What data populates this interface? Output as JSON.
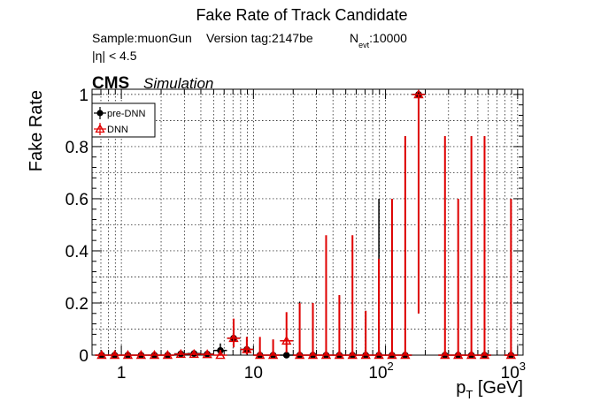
{
  "title": "Fake Rate of Track Candidate",
  "info": {
    "sample": "Sample:muonGun",
    "version": "Version tag:2147be",
    "nevt_label": "N",
    "nevt_sub": "evt",
    "nevt_value": ":10000",
    "eta_cut": "|η| < 4.5"
  },
  "cms_label": "CMS",
  "simulation_label": "Simulation",
  "chart_data": {
    "type": "scatter",
    "title": "Fake Rate of Track Candidate",
    "xlabel_main": "p",
    "xlabel_sub": "T",
    "xlabel_unit": " [GeV]",
    "ylabel": "Fake Rate",
    "xscale": "log",
    "xlim": [
      0.6,
      1100
    ],
    "ylim": [
      0,
      1.02
    ],
    "grid": true,
    "legend_placement": "top-left",
    "x_major_ticks": [
      {
        "value": 1,
        "base": "1",
        "exp": ""
      },
      {
        "value": 10,
        "base": "10",
        "exp": ""
      },
      {
        "value": 100,
        "base": "10",
        "exp": "2"
      },
      {
        "value": 1000,
        "base": "10",
        "exp": "3"
      }
    ],
    "y_ticks": [
      {
        "value": 0,
        "label": "0"
      },
      {
        "value": 0.2,
        "label": "0.2"
      },
      {
        "value": 0.4,
        "label": "0.4"
      },
      {
        "value": 0.6,
        "label": "0.6"
      },
      {
        "value": 0.8,
        "label": "0.8"
      },
      {
        "value": 1.0,
        "label": "1"
      }
    ],
    "series": [
      {
        "name": "pre-DNN",
        "color": "#000000",
        "marker": "filled-circle",
        "points": [
          {
            "x": 0.71,
            "y": 0.0,
            "lo": 0.0,
            "hi": 0.012
          },
          {
            "x": 0.89,
            "y": 0.0,
            "lo": 0.0,
            "hi": 0.008
          },
          {
            "x": 1.12,
            "y": 0.0,
            "lo": 0.0,
            "hi": 0.006
          },
          {
            "x": 1.41,
            "y": 0.0,
            "lo": 0.0,
            "hi": 0.006
          },
          {
            "x": 1.78,
            "y": 0.0,
            "lo": 0.0,
            "hi": 0.006
          },
          {
            "x": 2.24,
            "y": 0.0,
            "lo": 0.0,
            "hi": 0.008
          },
          {
            "x": 2.82,
            "y": 0.005,
            "lo": 0.0,
            "hi": 0.014
          },
          {
            "x": 3.55,
            "y": 0.006,
            "lo": 0.0,
            "hi": 0.016
          },
          {
            "x": 4.47,
            "y": 0.004,
            "lo": 0.0,
            "hi": 0.014
          },
          {
            "x": 5.62,
            "y": 0.018,
            "lo": 0.004,
            "hi": 0.045
          },
          {
            "x": 7.08,
            "y": 0.065,
            "lo": 0.03,
            "hi": 0.12
          },
          {
            "x": 8.91,
            "y": 0.022,
            "lo": 0.003,
            "hi": 0.07
          },
          {
            "x": 11.2,
            "y": 0.0,
            "lo": 0.0,
            "hi": 0.045
          },
          {
            "x": 14.1,
            "y": 0.0,
            "lo": 0.0,
            "hi": 0.06
          },
          {
            "x": 17.8,
            "y": 0.0,
            "lo": 0.0,
            "hi": 0.07
          },
          {
            "x": 22.4,
            "y": 0.0,
            "lo": 0.0,
            "hi": 0.205
          },
          {
            "x": 28.2,
            "y": 0.0,
            "lo": 0.0,
            "hi": 0.2
          },
          {
            "x": 35.5,
            "y": 0.0,
            "lo": 0.0,
            "hi": 0.31
          },
          {
            "x": 44.7,
            "y": 0.0,
            "lo": 0.0,
            "hi": 0.23
          },
          {
            "x": 56.2,
            "y": 0.0,
            "lo": 0.0,
            "hi": 0.37
          },
          {
            "x": 70.8,
            "y": 0.0,
            "lo": 0.0,
            "hi": 0.17
          },
          {
            "x": 89.1,
            "y": 0.0,
            "lo": 0.0,
            "hi": 0.6
          },
          {
            "x": 112,
            "y": 0.0,
            "lo": 0.0,
            "hi": 0.6
          },
          {
            "x": 141,
            "y": 0.0,
            "lo": 0.0,
            "hi": 0.84
          },
          {
            "x": 178,
            "y": 1.0,
            "lo": 0.16,
            "hi": 1.0
          },
          {
            "x": 282,
            "y": 0.0,
            "lo": 0.0,
            "hi": 0.84
          },
          {
            "x": 355,
            "y": 0.0,
            "lo": 0.0,
            "hi": 0.6
          },
          {
            "x": 447,
            "y": 0.0,
            "lo": 0.0,
            "hi": 0.84
          },
          {
            "x": 562,
            "y": 0.0,
            "lo": 0.0,
            "hi": 0.84
          },
          {
            "x": 891,
            "y": 0.0,
            "lo": 0.0,
            "hi": 0.6
          }
        ]
      },
      {
        "name": "DNN",
        "color": "#e00000",
        "marker": "open-triangle",
        "points": [
          {
            "x": 0.71,
            "y": 0.0,
            "lo": 0.0,
            "hi": 0.012
          },
          {
            "x": 0.89,
            "y": 0.0,
            "lo": 0.0,
            "hi": 0.008
          },
          {
            "x": 1.12,
            "y": 0.0,
            "lo": 0.0,
            "hi": 0.006
          },
          {
            "x": 1.41,
            "y": 0.0,
            "lo": 0.0,
            "hi": 0.006
          },
          {
            "x": 1.78,
            "y": 0.0,
            "lo": 0.0,
            "hi": 0.006
          },
          {
            "x": 2.24,
            "y": 0.0,
            "lo": 0.0,
            "hi": 0.008
          },
          {
            "x": 2.82,
            "y": 0.004,
            "lo": 0.0,
            "hi": 0.012
          },
          {
            "x": 3.55,
            "y": 0.004,
            "lo": 0.0,
            "hi": 0.014
          },
          {
            "x": 4.47,
            "y": 0.003,
            "lo": 0.0,
            "hi": 0.012
          },
          {
            "x": 5.62,
            "y": 0.0,
            "lo": 0.0,
            "hi": 0.02
          },
          {
            "x": 7.08,
            "y": 0.065,
            "lo": 0.03,
            "hi": 0.14
          },
          {
            "x": 8.91,
            "y": 0.022,
            "lo": 0.003,
            "hi": 0.07
          },
          {
            "x": 11.2,
            "y": 0.0,
            "lo": 0.0,
            "hi": 0.07
          },
          {
            "x": 14.1,
            "y": 0.0,
            "lo": 0.0,
            "hi": 0.06
          },
          {
            "x": 17.8,
            "y": 0.055,
            "lo": 0.01,
            "hi": 0.165
          },
          {
            "x": 22.4,
            "y": 0.0,
            "lo": 0.0,
            "hi": 0.2
          },
          {
            "x": 28.2,
            "y": 0.0,
            "lo": 0.0,
            "hi": 0.2
          },
          {
            "x": 35.5,
            "y": 0.0,
            "lo": 0.0,
            "hi": 0.46
          },
          {
            "x": 44.7,
            "y": 0.0,
            "lo": 0.0,
            "hi": 0.23
          },
          {
            "x": 56.2,
            "y": 0.0,
            "lo": 0.0,
            "hi": 0.46
          },
          {
            "x": 70.8,
            "y": 0.0,
            "lo": 0.0,
            "hi": 0.17
          },
          {
            "x": 89.1,
            "y": 0.0,
            "lo": 0.0,
            "hi": 0.37
          },
          {
            "x": 112,
            "y": 0.0,
            "lo": 0.0,
            "hi": 0.6
          },
          {
            "x": 141,
            "y": 0.0,
            "lo": 0.0,
            "hi": 0.84
          },
          {
            "x": 178,
            "y": 1.0,
            "lo": 0.16,
            "hi": 1.0
          },
          {
            "x": 282,
            "y": 0.0,
            "lo": 0.0,
            "hi": 0.84
          },
          {
            "x": 355,
            "y": 0.0,
            "lo": 0.0,
            "hi": 0.6
          },
          {
            "x": 447,
            "y": 0.0,
            "lo": 0.0,
            "hi": 0.84
          },
          {
            "x": 562,
            "y": 0.0,
            "lo": 0.0,
            "hi": 0.84
          },
          {
            "x": 891,
            "y": 0.0,
            "lo": 0.0,
            "hi": 0.6
          }
        ]
      }
    ]
  }
}
